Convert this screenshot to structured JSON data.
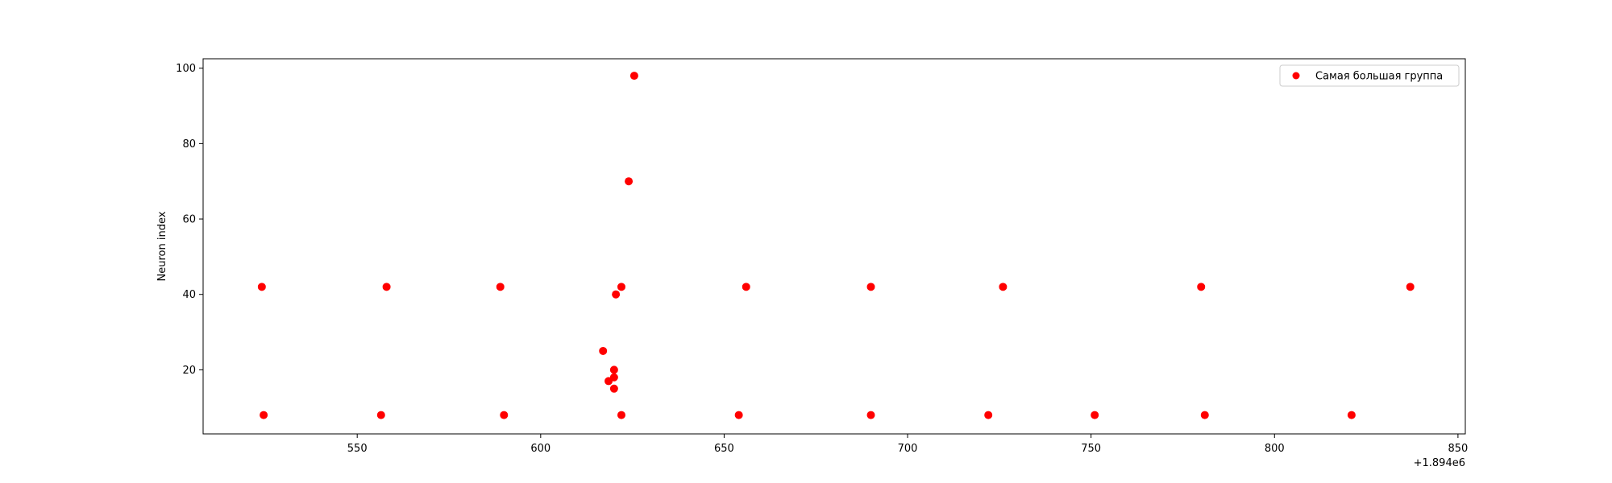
{
  "chart_data": {
    "type": "scatter",
    "title": "",
    "xlabel": "",
    "ylabel": "Neuron index",
    "x_offset_label": "+1.894e6",
    "x_offset": 1894000,
    "xlim": [
      1894508,
      1894852
    ],
    "ylim": [
      3,
      102.5
    ],
    "xticks": [
      {
        "value": 1894550,
        "label": "550"
      },
      {
        "value": 1894600,
        "label": "600"
      },
      {
        "value": 1894650,
        "label": "650"
      },
      {
        "value": 1894700,
        "label": "700"
      },
      {
        "value": 1894750,
        "label": "750"
      },
      {
        "value": 1894800,
        "label": "800"
      },
      {
        "value": 1894850,
        "label": "850"
      }
    ],
    "yticks": [
      {
        "value": 20,
        "label": "20"
      },
      {
        "value": 40,
        "label": "40"
      },
      {
        "value": 60,
        "label": "60"
      },
      {
        "value": 80,
        "label": "80"
      },
      {
        "value": 100,
        "label": "100"
      }
    ],
    "grid": false,
    "legend": {
      "placement": "top-right",
      "entries": [
        "Самая большая группа"
      ]
    },
    "series": [
      {
        "name": "Самая большая группа",
        "color": "#ff0000",
        "points": [
          {
            "x": 1894524,
            "y": 42
          },
          {
            "x": 1894558,
            "y": 42
          },
          {
            "x": 1894589,
            "y": 42
          },
          {
            "x": 1894622,
            "y": 42
          },
          {
            "x": 1894656,
            "y": 42
          },
          {
            "x": 1894690,
            "y": 42
          },
          {
            "x": 1894726,
            "y": 42
          },
          {
            "x": 1894780,
            "y": 42
          },
          {
            "x": 1894837,
            "y": 42
          },
          {
            "x": 1894524.5,
            "y": 8
          },
          {
            "x": 1894556.5,
            "y": 8
          },
          {
            "x": 1894590,
            "y": 8
          },
          {
            "x": 1894622,
            "y": 8
          },
          {
            "x": 1894654,
            "y": 8
          },
          {
            "x": 1894690,
            "y": 8
          },
          {
            "x": 1894722,
            "y": 8
          },
          {
            "x": 1894751,
            "y": 8
          },
          {
            "x": 1894781,
            "y": 8
          },
          {
            "x": 1894821,
            "y": 8
          },
          {
            "x": 1894625.5,
            "y": 98
          },
          {
            "x": 1894624,
            "y": 70
          },
          {
            "x": 1894620.5,
            "y": 40
          },
          {
            "x": 1894617,
            "y": 25
          },
          {
            "x": 1894620,
            "y": 20
          },
          {
            "x": 1894620,
            "y": 18
          },
          {
            "x": 1894618.5,
            "y": 17
          },
          {
            "x": 1894620,
            "y": 15
          }
        ]
      }
    ]
  }
}
